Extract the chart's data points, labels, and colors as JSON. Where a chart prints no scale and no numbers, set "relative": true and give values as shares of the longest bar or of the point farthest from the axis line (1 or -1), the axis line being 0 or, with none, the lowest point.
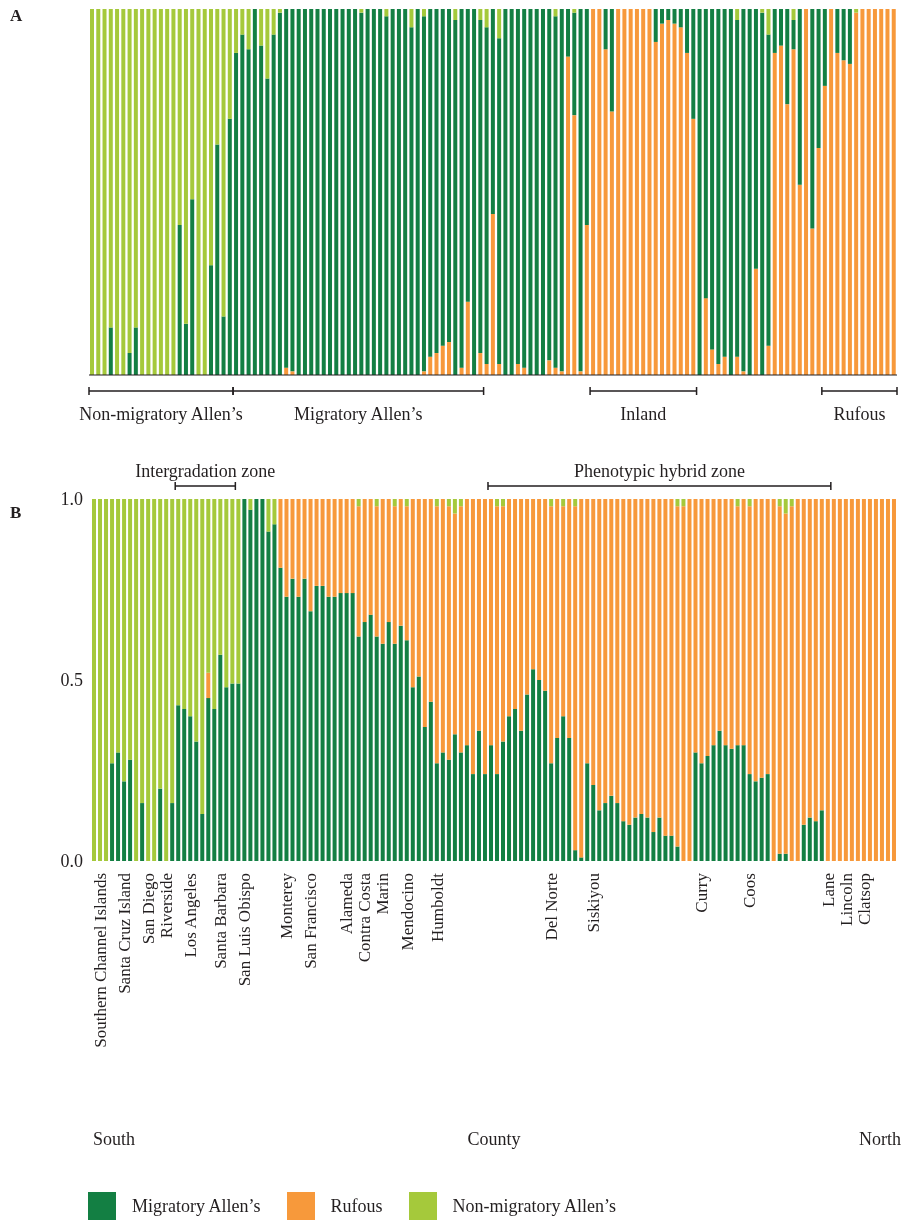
{
  "chart_data": [
    {
      "type": "bar",
      "title": "A",
      "stacked": true,
      "relative": true,
      "categories": [
        null,
        null,
        null,
        null,
        null,
        null,
        null,
        null,
        null,
        null,
        null,
        null,
        null,
        null,
        null,
        null,
        null,
        null,
        null,
        null,
        null,
        null,
        null,
        null,
        null,
        null,
        null,
        null,
        null,
        null,
        null,
        null,
        null,
        null,
        null,
        null,
        null,
        null,
        null,
        null,
        null,
        null,
        null,
        null,
        null,
        null,
        null,
        null,
        null,
        null,
        null,
        null,
        null,
        null,
        null,
        null,
        null,
        null,
        null,
        null,
        null,
        null,
        null,
        null,
        null,
        null,
        null,
        null,
        null,
        null,
        null,
        null,
        null,
        null,
        null,
        null,
        null,
        null,
        null,
        null,
        null,
        null,
        null,
        null,
        null,
        null,
        null,
        null,
        null,
        null,
        null,
        null,
        null,
        null,
        null,
        null,
        null,
        null,
        null,
        null,
        null,
        null,
        null,
        null,
        null,
        null,
        null,
        null,
        null,
        null,
        null,
        null,
        null,
        null,
        null,
        null,
        null,
        null,
        null,
        null,
        null,
        null,
        null,
        null,
        null,
        null,
        null,
        null,
        null
      ],
      "series": [
        {
          "color": "#f7993b",
          "values": [
            0,
            0,
            0,
            0,
            0,
            0,
            0,
            0,
            0,
            0,
            0,
            0,
            0,
            0,
            0,
            0,
            0,
            0,
            0,
            0,
            0,
            0,
            0,
            0,
            0,
            0,
            0,
            0,
            0,
            0,
            0,
            0.02,
            0.01,
            0,
            0,
            0,
            0,
            0,
            0,
            0,
            0,
            0,
            0,
            0,
            0,
            0,
            0,
            0,
            0,
            0,
            0,
            0,
            0,
            0.01,
            0.05,
            0.06,
            0.08,
            0.09,
            0,
            0.02,
            0.2,
            0,
            0.06,
            0.03,
            0.44,
            0.03,
            0,
            0,
            0.03,
            0.02,
            0,
            0,
            0,
            0.04,
            0.02,
            0.01,
            0.87,
            0.71,
            0.01,
            0.41,
            1,
            1,
            0.89,
            0.72,
            1,
            1,
            1,
            1,
            1,
            1,
            0.91,
            0.96,
            0.97,
            0.96,
            0.95,
            0.88,
            0.7,
            0,
            0.21,
            0.07,
            0.03,
            0.05,
            0,
            0.05,
            0.01,
            0,
            0.29,
            0,
            0.08,
            0.88,
            0.9,
            0.74,
            0.89,
            0.52,
            1,
            0.4,
            0.62,
            0.79,
            1,
            0.88,
            0.86,
            0.85,
            0.99,
            1,
            1,
            1,
            1,
            1,
            1
          ]
        },
        {
          "color": "#137f43",
          "values": [
            0,
            0,
            0,
            0.13,
            0,
            0,
            0.06,
            0.13,
            0,
            0,
            0,
            0,
            0,
            0,
            0.41,
            0.14,
            0.48,
            0,
            0,
            0.3,
            0.63,
            0.16,
            0.7,
            0.88,
            0.93,
            0.89,
            1,
            0.9,
            0.81,
            0.93,
            0.99,
            0.98,
            0.99,
            1,
            1,
            1,
            1,
            1,
            1,
            1,
            1,
            1,
            1,
            0.99,
            1,
            1,
            1,
            0.98,
            1,
            1,
            1,
            0.95,
            1,
            0.97,
            0.95,
            0.94,
            0.92,
            0.91,
            0.97,
            0.98,
            0.8,
            1,
            0.91,
            0.92,
            0.56,
            0.89,
            1,
            1,
            0.97,
            0.98,
            1,
            1,
            1,
            0.96,
            0.96,
            0.99,
            0.13,
            0.28,
            0.99,
            0.59,
            0,
            0,
            0.11,
            0.28,
            0,
            0,
            0,
            0,
            0,
            0,
            0.09,
            0.04,
            0.03,
            0.04,
            0.05,
            0.12,
            0.3,
            1,
            0.79,
            0.93,
            0.97,
            0.95,
            1,
            0.92,
            0.99,
            1,
            0.71,
            0.99,
            0.85,
            0.12,
            0.1,
            0.26,
            0.08,
            0.48,
            0,
            0.6,
            0.38,
            0.21,
            0,
            0.12,
            0.14,
            0.15,
            0,
            0,
            0,
            0,
            0,
            0,
            0
          ]
        },
        {
          "color": "#a5c93b",
          "values": [
            1,
            1,
            1,
            0.87,
            1,
            1,
            0.94,
            0.87,
            1,
            1,
            1,
            1,
            1,
            1,
            0.59,
            0.86,
            0.52,
            1,
            1,
            0.7,
            0.37,
            0.84,
            0.3,
            0.12,
            0.07,
            0.11,
            0,
            0.1,
            0.19,
            0.07,
            0.01,
            0,
            0,
            0,
            0,
            0,
            0,
            0,
            0,
            0,
            0,
            0,
            0,
            0.01,
            0,
            0,
            0,
            0.02,
            0,
            0,
            0,
            0.05,
            0,
            0.02,
            0,
            0,
            0,
            0,
            0.03,
            0,
            0,
            0,
            0.03,
            0.05,
            0,
            0.08,
            0,
            0,
            0,
            0,
            0,
            0,
            0,
            0,
            0.02,
            0,
            0,
            0.01,
            0,
            0,
            0,
            0,
            0,
            0,
            0,
            0,
            0,
            0,
            0,
            0,
            0,
            0,
            0,
            0,
            0,
            0,
            0,
            0,
            0,
            0,
            0,
            0,
            0,
            0.03,
            0,
            0,
            0,
            0.01,
            0.07,
            0,
            0,
            0,
            0.03,
            0,
            0,
            0,
            0,
            0,
            0,
            0,
            0,
            0,
            0.01,
            0,
            0,
            0,
            0,
            0,
            0
          ]
        }
      ],
      "annotations": [
        "Non-migratory Allen’s",
        "Migratory Allen’s",
        "Inland",
        "Rufous"
      ]
    },
    {
      "type": "bar",
      "title": "B",
      "stacked": true,
      "xlabel": "County",
      "legend": "bottom",
      "ylim": [
        0,
        1
      ],
      "yticks": [
        {
          "value": 0,
          "label": "0.0"
        },
        {
          "value": 0.5,
          "label": "0.5"
        },
        {
          "value": 1,
          "label": "1.0"
        }
      ],
      "categories": [
        null,
        "Southern Channel Islands",
        null,
        null,
        null,
        "Santa Cruz Island",
        null,
        null,
        null,
        "San Diego",
        null,
        null,
        "Riverside",
        null,
        null,
        null,
        "Los Angeles",
        null,
        null,
        null,
        null,
        "Santa Barbara",
        null,
        null,
        null,
        "San Luis Obispo",
        null,
        null,
        null,
        null,
        null,
        null,
        "Monterey",
        null,
        null,
        null,
        "San Francisco",
        null,
        null,
        null,
        null,
        null,
        "Alameda",
        null,
        null,
        "Contra Costa",
        null,
        null,
        "Marin",
        null,
        null,
        null,
        "Mendocino",
        null,
        null,
        null,
        null,
        "Humboldt",
        null,
        null,
        null,
        null,
        null,
        null,
        null,
        null,
        null,
        null,
        null,
        null,
        null,
        null,
        null,
        null,
        null,
        null,
        "Del Norte",
        null,
        null,
        null,
        null,
        null,
        null,
        "Siskiyou",
        null,
        null,
        null,
        null,
        null,
        null,
        null,
        null,
        null,
        null,
        null,
        null,
        null,
        null,
        null,
        null,
        null,
        "Curry",
        null,
        null,
        null,
        null,
        null,
        null,
        null,
        "Coos",
        null,
        null,
        null,
        null,
        null,
        null,
        null,
        null,
        null,
        null,
        null,
        null,
        "Lane",
        null,
        null,
        "Lincoln",
        null,
        null,
        "Clatsop",
        null,
        null,
        null,
        null,
        null
      ],
      "series": [
        {
          "name": "Migratory Allen’s",
          "color": "#137f43",
          "values": [
            0,
            0,
            0,
            0.27,
            0.3,
            0.22,
            0.28,
            0,
            0.16,
            0,
            0,
            0.2,
            0,
            0.16,
            0.43,
            0.42,
            0.4,
            0.33,
            0.13,
            0.45,
            0.42,
            0.57,
            0.48,
            0.49,
            0.49,
            1,
            0.97,
            1,
            1,
            0.91,
            0.93,
            0.81,
            0.73,
            0.78,
            0.73,
            0.78,
            0.69,
            0.76,
            0.76,
            0.73,
            0.73,
            0.74,
            0.74,
            0.74,
            0.62,
            0.66,
            0.68,
            0.62,
            0.6,
            0.66,
            0.6,
            0.65,
            0.61,
            0.48,
            0.51,
            0.37,
            0.44,
            0.27,
            0.3,
            0.28,
            0.35,
            0.3,
            0.32,
            0.24,
            0.36,
            0.24,
            0.32,
            0.24,
            0.33,
            0.4,
            0.42,
            0.36,
            0.46,
            0.53,
            0.5,
            0.47,
            0.27,
            0.34,
            0.4,
            0.34,
            0.03,
            0.01,
            0.27,
            0.21,
            0.14,
            0.16,
            0.18,
            0.16,
            0.11,
            0.1,
            0.12,
            0.13,
            0.12,
            0.08,
            0.12,
            0.07,
            0.07,
            0.04,
            0,
            0,
            0.3,
            0.27,
            0.29,
            0.32,
            0.36,
            0.32,
            0.31,
            0.32,
            0.32,
            0.24,
            0.22,
            0.23,
            0.24,
            0,
            0.02,
            0.02,
            0,
            0,
            0.1,
            0.12,
            0.11,
            0.14,
            0,
            0,
            0,
            0,
            0,
            0,
            0,
            0,
            0,
            0,
            0,
            0
          ]
        },
        {
          "name": "Rufous",
          "color": "#f7993b",
          "values": [
            0,
            0,
            0,
            0,
            0,
            0,
            0,
            0,
            0,
            0,
            0,
            0,
            0,
            0,
            0,
            0,
            0,
            0,
            0,
            0.07,
            0,
            0,
            0,
            0,
            0,
            0,
            0,
            0,
            0,
            0,
            0,
            0.19,
            0.27,
            0.22,
            0.27,
            0.22,
            0.31,
            0.24,
            0.24,
            0.27,
            0.27,
            0.26,
            0.26,
            0.26,
            0.36,
            0.34,
            0.32,
            0.36,
            0.4,
            0.34,
            0.38,
            0.35,
            0.37,
            0.52,
            0.49,
            0.63,
            0.56,
            0.71,
            0.7,
            0.7,
            0.61,
            0.68,
            0.68,
            0.76,
            0.64,
            0.76,
            0.68,
            0.74,
            0.65,
            0.6,
            0.58,
            0.64,
            0.54,
            0.47,
            0.5,
            0.53,
            0.71,
            0.66,
            0.58,
            0.66,
            0.95,
            0.99,
            0.73,
            0.79,
            0.86,
            0.84,
            0.82,
            0.84,
            0.89,
            0.9,
            0.88,
            0.87,
            0.88,
            0.92,
            0.88,
            0.93,
            0.93,
            0.94,
            0.98,
            1,
            0.7,
            0.73,
            0.71,
            0.68,
            0.64,
            0.68,
            0.69,
            0.66,
            0.68,
            0.74,
            0.78,
            0.77,
            0.76,
            1,
            0.96,
            0.94,
            0.98,
            1,
            0.9,
            0.88,
            0.89,
            0.86,
            1,
            1,
            1,
            1,
            1,
            1,
            1,
            1,
            1,
            1,
            1,
            1
          ]
        },
        {
          "name": "Non-migratory Allen’s",
          "color": "#a5c93b",
          "values": [
            1,
            1,
            1,
            0.73,
            0.7,
            0.78,
            0.72,
            1,
            0.84,
            1,
            1,
            0.8,
            1,
            0.84,
            0.57,
            0.58,
            0.6,
            0.67,
            0.87,
            0.48,
            0.58,
            0.43,
            0.52,
            0.51,
            0.51,
            0,
            0.03,
            0,
            0,
            0.09,
            0.07,
            0,
            0,
            0,
            0,
            0,
            0,
            0,
            0,
            0,
            0,
            0,
            0,
            0,
            0.02,
            0,
            0,
            0.02,
            0,
            0,
            0.02,
            0,
            0.02,
            0,
            0,
            0,
            0,
            0.02,
            0,
            0.02,
            0.04,
            0.02,
            0,
            0,
            0,
            0,
            0,
            0.02,
            0.02,
            0,
            0,
            0,
            0,
            0,
            0,
            0,
            0.02,
            0,
            0.02,
            0,
            0.02,
            0,
            0,
            0,
            0,
            0,
            0,
            0,
            0,
            0,
            0,
            0,
            0,
            0,
            0,
            0,
            0,
            0.02,
            0.02,
            0,
            0,
            0,
            0,
            0,
            0,
            0,
            0,
            0.02,
            0,
            0.02,
            0,
            0,
            0,
            0,
            0.02,
            0.04,
            0.02,
            0,
            0,
            0,
            0,
            0,
            0,
            0,
            0,
            0,
            0,
            0,
            0,
            0,
            0,
            0,
            0,
            0
          ]
        }
      ],
      "annotations": [
        "Intergradation zone",
        "Phenotypic hybrid zone",
        "South",
        "North"
      ]
    }
  ]
}
